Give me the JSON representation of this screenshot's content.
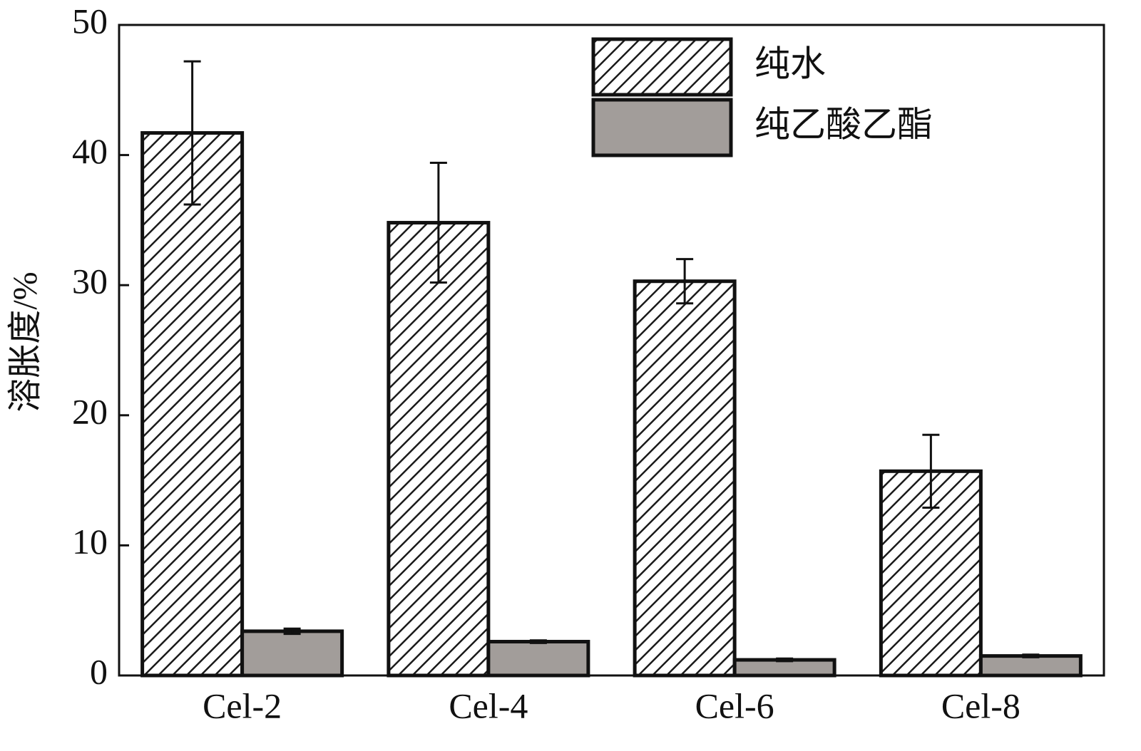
{
  "chart_data": {
    "type": "bar",
    "y_label": "溶胀度/%",
    "categories": [
      "Cel-2",
      "Cel-4",
      "Cel-6",
      "Cel-8"
    ],
    "series": [
      {
        "name": "纯水",
        "color": "#1a1a1a",
        "hatch": true,
        "values": [
          41.7,
          34.8,
          30.3,
          15.7
        ],
        "errors": [
          5.5,
          4.6,
          1.7,
          2.8
        ]
      },
      {
        "name": "纯乙酸乙酯",
        "color": "#a29d9a",
        "hatch": false,
        "values": [
          3.4,
          2.6,
          1.2,
          1.5
        ],
        "errors": [
          0.2,
          0.1,
          0.1,
          0.1
        ]
      }
    ],
    "ylim": [
      0,
      50
    ],
    "yticks": [
      0,
      10,
      20,
      30,
      40,
      50
    ],
    "legend": "upper right"
  }
}
